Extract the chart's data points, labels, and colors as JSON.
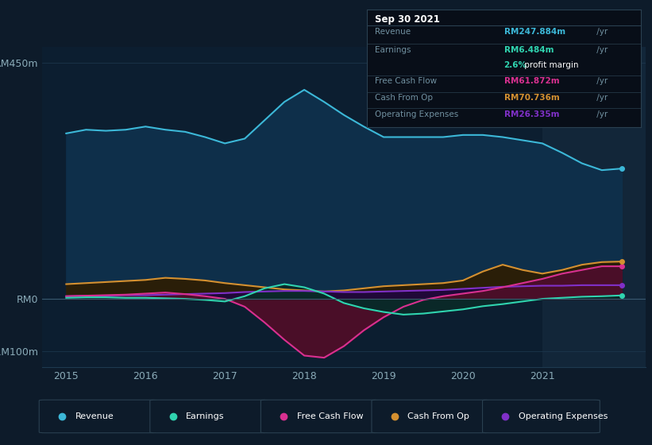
{
  "bg_color": "#0d1b2a",
  "plot_bg_color": "#0c1e30",
  "grid_color": "#1e3a50",
  "zero_line_color": "#3a5a70",
  "title_box": {
    "date": "Sep 30 2021",
    "revenue_label": "Revenue",
    "revenue_value": "RM247.884m",
    "earnings_label": "Earnings",
    "earnings_value": "RM6.484m",
    "profit_margin_bold": "2.6%",
    "profit_margin_rest": " profit margin",
    "fcf_label": "Free Cash Flow",
    "fcf_value": "RM61.872m",
    "cashop_label": "Cash From Op",
    "cashop_value": "RM70.736m",
    "opex_label": "Operating Expenses",
    "opex_value": "RM26.335m"
  },
  "colors": {
    "revenue": "#3cb8d8",
    "revenue_fill": "#0e2f4a",
    "earnings": "#30d4b0",
    "earnings_fill": "#0a2828",
    "free_cash_flow": "#d83090",
    "free_cash_flow_fill": "#4a0e28",
    "cash_from_op": "#d49030",
    "cash_from_op_fill": "#2a1e08",
    "operating_expenses": "#8030c8",
    "operating_expenses_fill": "#200838"
  },
  "ylim": [
    -130,
    480
  ],
  "yticks": [
    450,
    0,
    -100
  ],
  "ytick_labels": [
    "RM450m",
    "RM0",
    "-RM100m"
  ],
  "xlim": [
    2014.7,
    2022.3
  ],
  "xticks": [
    2015,
    2016,
    2017,
    2018,
    2019,
    2020,
    2021
  ],
  "revenue": {
    "x": [
      2015.0,
      2015.25,
      2015.5,
      2015.75,
      2016.0,
      2016.25,
      2016.5,
      2016.75,
      2017.0,
      2017.25,
      2017.5,
      2017.75,
      2018.0,
      2018.25,
      2018.5,
      2018.75,
      2019.0,
      2019.25,
      2019.5,
      2019.75,
      2020.0,
      2020.25,
      2020.5,
      2020.75,
      2021.0,
      2021.25,
      2021.5,
      2021.75,
      2022.0
    ],
    "y": [
      315,
      322,
      320,
      322,
      328,
      322,
      318,
      308,
      296,
      305,
      340,
      375,
      398,
      375,
      350,
      328,
      308,
      308,
      308,
      308,
      312,
      312,
      308,
      302,
      296,
      278,
      258,
      245,
      248
    ]
  },
  "earnings": {
    "x": [
      2015.0,
      2015.25,
      2015.5,
      2015.75,
      2016.0,
      2016.25,
      2016.5,
      2016.75,
      2017.0,
      2017.25,
      2017.5,
      2017.75,
      2018.0,
      2018.25,
      2018.5,
      2018.75,
      2019.0,
      2019.25,
      2019.5,
      2019.75,
      2020.0,
      2020.25,
      2020.5,
      2020.75,
      2021.0,
      2021.25,
      2021.5,
      2021.75,
      2022.0
    ],
    "y": [
      2,
      3,
      3,
      2,
      2,
      1,
      0,
      -2,
      -5,
      5,
      20,
      28,
      22,
      10,
      -8,
      -18,
      -25,
      -30,
      -28,
      -24,
      -20,
      -14,
      -10,
      -5,
      0,
      2,
      4,
      5,
      6.5
    ]
  },
  "free_cash_flow": {
    "x": [
      2015.0,
      2015.25,
      2015.5,
      2015.75,
      2016.0,
      2016.25,
      2016.5,
      2016.75,
      2017.0,
      2017.25,
      2017.5,
      2017.75,
      2018.0,
      2018.25,
      2018.5,
      2018.75,
      2019.0,
      2019.25,
      2019.5,
      2019.75,
      2020.0,
      2020.25,
      2020.5,
      2020.75,
      2021.0,
      2021.25,
      2021.5,
      2021.75,
      2022.0
    ],
    "y": [
      5,
      6,
      7,
      8,
      10,
      12,
      9,
      5,
      0,
      -15,
      -45,
      -78,
      -108,
      -112,
      -90,
      -60,
      -35,
      -15,
      -2,
      5,
      10,
      15,
      22,
      30,
      38,
      48,
      55,
      62,
      62
    ]
  },
  "cash_from_op": {
    "x": [
      2015.0,
      2015.25,
      2015.5,
      2015.75,
      2016.0,
      2016.25,
      2016.5,
      2016.75,
      2017.0,
      2017.25,
      2017.5,
      2017.75,
      2018.0,
      2018.25,
      2018.5,
      2018.75,
      2019.0,
      2019.25,
      2019.5,
      2019.75,
      2020.0,
      2020.25,
      2020.5,
      2020.75,
      2021.0,
      2021.25,
      2021.5,
      2021.75,
      2022.0
    ],
    "y": [
      28,
      30,
      32,
      34,
      36,
      40,
      38,
      35,
      30,
      26,
      22,
      18,
      16,
      14,
      16,
      20,
      24,
      26,
      28,
      30,
      35,
      52,
      65,
      55,
      48,
      55,
      65,
      70,
      71
    ]
  },
  "operating_expenses": {
    "x": [
      2015.0,
      2015.25,
      2015.5,
      2015.75,
      2016.0,
      2016.25,
      2016.5,
      2016.75,
      2017.0,
      2017.25,
      2017.5,
      2017.75,
      2018.0,
      2018.25,
      2018.5,
      2018.75,
      2019.0,
      2019.25,
      2019.5,
      2019.75,
      2020.0,
      2020.25,
      2020.5,
      2020.75,
      2021.0,
      2021.25,
      2021.5,
      2021.75,
      2022.0
    ],
    "y": [
      5,
      6,
      6,
      7,
      7,
      8,
      9,
      10,
      11,
      13,
      14,
      15,
      15,
      14,
      13,
      13,
      14,
      15,
      16,
      17,
      19,
      21,
      23,
      24,
      25,
      25,
      26,
      26,
      26
    ]
  },
  "legend": [
    {
      "label": "Revenue",
      "color": "#3cb8d8"
    },
    {
      "label": "Earnings",
      "color": "#30d4b0"
    },
    {
      "label": "Free Cash Flow",
      "color": "#d83090"
    },
    {
      "label": "Cash From Op",
      "color": "#d49030"
    },
    {
      "label": "Operating Expenses",
      "color": "#8030c8"
    }
  ],
  "highlighted_x_start": 2021.0,
  "highlighted_x_end": 2022.3
}
